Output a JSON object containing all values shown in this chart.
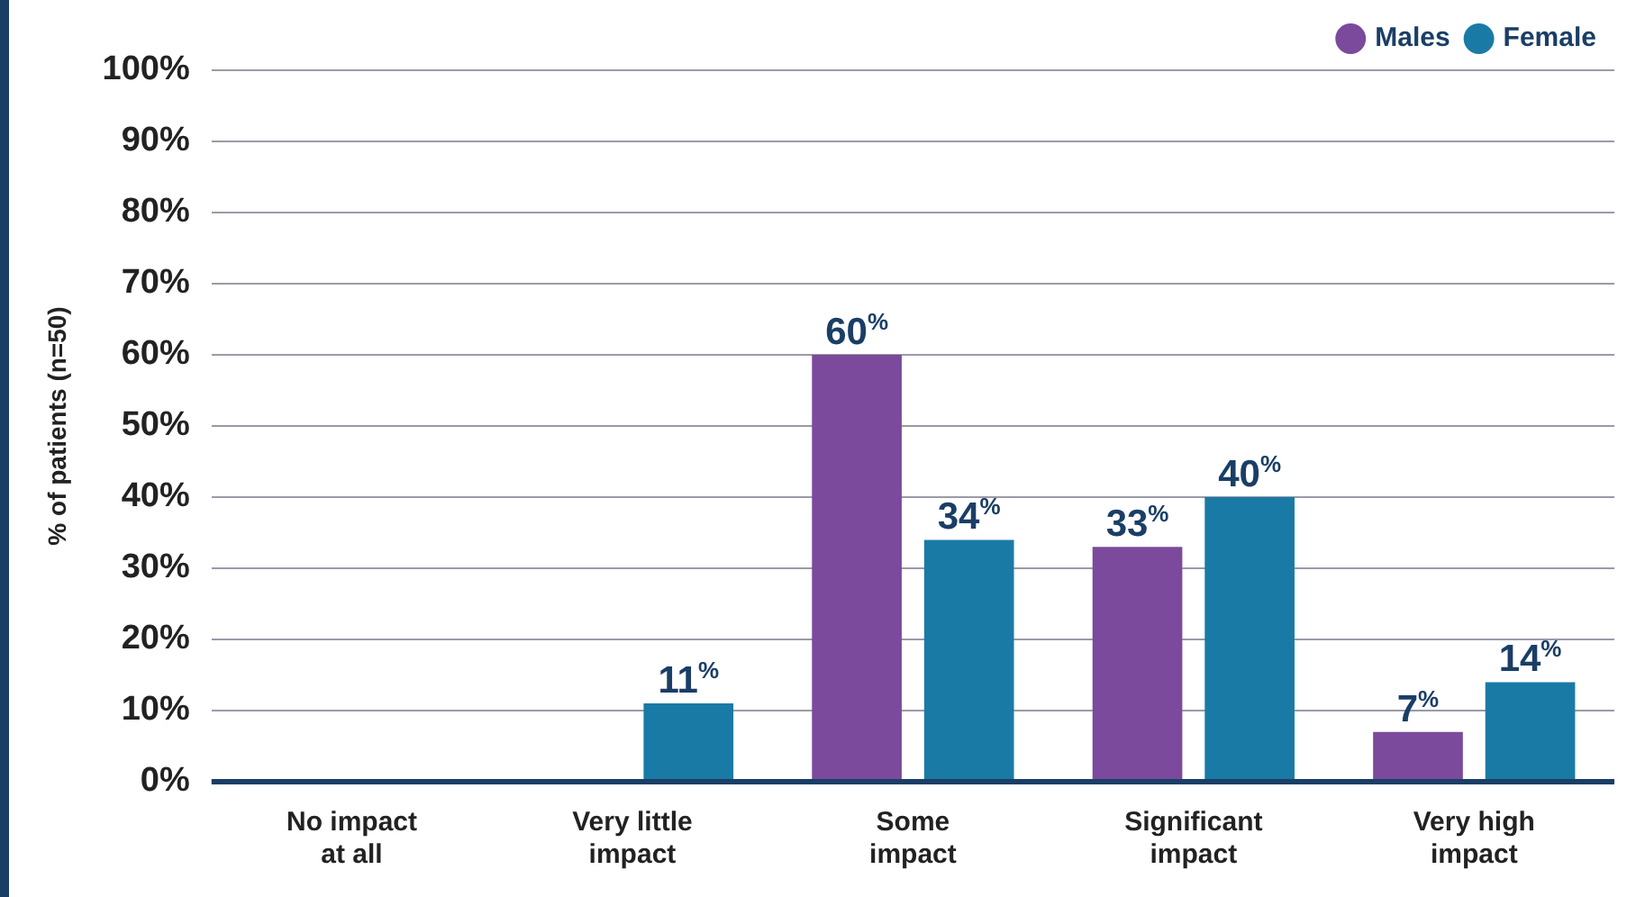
{
  "chart_data": {
    "type": "bar",
    "ylabel": "% of patients (n=50)",
    "categories": [
      "No impact at all",
      "Very little impact",
      "Some impact",
      "Significant impact",
      "Very high impact"
    ],
    "series": [
      {
        "name": "Males",
        "color": "#7b4a9c",
        "values": [
          0,
          0,
          60,
          33,
          7
        ],
        "value_labels": [
          null,
          null,
          "60$^{%}$",
          "33$^{%}$",
          "7$^{%}$"
        ]
      },
      {
        "name": "Female",
        "color": "#1a7aa6",
        "values": [
          0,
          11,
          34,
          40,
          14
        ],
        "value_labels": [
          null,
          "11$^{%}$",
          "34$^{%}$",
          "40$^{%}$",
          "14$^{%}$"
        ]
      }
    ],
    "ylim": [
      0,
      100
    ],
    "yticks": [
      {
        "value": 0,
        "label": "0%"
      },
      {
        "value": 10,
        "label": "10%"
      },
      {
        "value": 20,
        "label": "20%"
      },
      {
        "value": 30,
        "label": "30%"
      },
      {
        "value": 40,
        "label": "40%"
      },
      {
        "value": 50,
        "label": "50%"
      },
      {
        "value": 60,
        "label": "60%"
      },
      {
        "value": 70,
        "label": "70%"
      },
      {
        "value": 80,
        "label": "80%"
      },
      {
        "value": 90,
        "label": "90%"
      },
      {
        "value": 100,
        "label": "100%"
      }
    ],
    "grid": "y",
    "legend": "top right"
  }
}
